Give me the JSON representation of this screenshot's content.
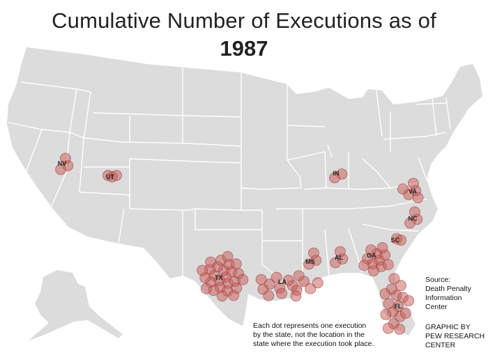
{
  "title_line1": "Cumulative Number of Executions as of",
  "title_line2": "1987",
  "note_lines": [
    "Each dot represents one execution",
    "by the state, not the location in the",
    "state where the execution took place."
  ],
  "source_lines": [
    "Source:",
    "Death Penalty",
    "Information",
    "Center"
  ],
  "credit_lines": [
    "GRAPHIC BY",
    "PEW RESEARCH",
    "CENTER"
  ],
  "colors": {
    "land": "#dcdcdc",
    "border": "#ffffff",
    "dot_fill": "#c65a55",
    "dot_stroke": "#a33a36",
    "text": "#222222"
  },
  "chart_data": {
    "type": "map-dots",
    "unit": "executions",
    "states": [
      {
        "code": "TX",
        "count": 26
      },
      {
        "code": "FL",
        "count": 16
      },
      {
        "code": "LA",
        "count": 15
      },
      {
        "code": "GA",
        "count": 11
      },
      {
        "code": "VA",
        "count": 5
      },
      {
        "code": "AL",
        "count": 3
      },
      {
        "code": "MS",
        "count": 3
      },
      {
        "code": "NC",
        "count": 3
      },
      {
        "code": "NV",
        "count": 3
      },
      {
        "code": "UT",
        "count": 3
      },
      {
        "code": "IN",
        "count": 2
      },
      {
        "code": "SC",
        "count": 2
      }
    ]
  }
}
